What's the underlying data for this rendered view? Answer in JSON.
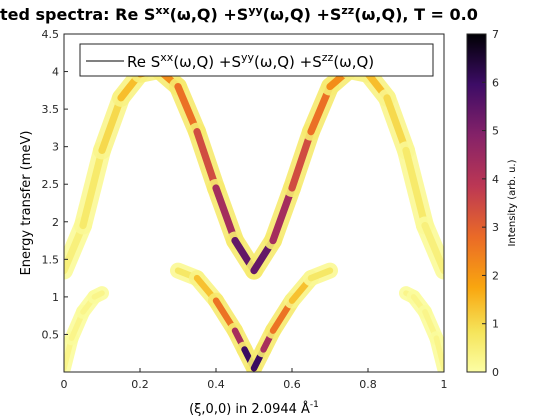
{
  "chart_data": {
    "type": "heatmap",
    "title": "ted spectra: Re S^{xx}(ω,Q) +S^{yy}(ω,Q) +S^{zz}(ω,Q), T =   0.0",
    "title_parts": {
      "prefix": "ted spectra: Re S",
      "sup1": "xx",
      "mid1": "(ω,Q) +S",
      "sup2": "yy",
      "mid2": "(ω,Q) +S",
      "sup3": "zz",
      "suffix": "(ω,Q), T =   0.0"
    },
    "xlabel": "(ξ,0,0) in 2.0944 Å",
    "xlabel_sup": "-1",
    "ylabel": "Energy transfer (meV)",
    "xlim": [
      0,
      1
    ],
    "ylim": [
      0,
      4.5
    ],
    "xticks": [
      "0",
      "0.2",
      "0.4",
      "0.6",
      "0.8",
      "1"
    ],
    "yticks": [
      "0.5",
      "1",
      "1.5",
      "2",
      "2.5",
      "3",
      "3.5",
      "4",
      "4.5"
    ],
    "legend": {
      "position": "top",
      "text_parts": {
        "prefix": "Re S",
        "sup1": "xx",
        "mid1": "(ω,Q) +S",
        "sup2": "yy",
        "mid2": "(ω,Q) +S",
        "sup3": "zz",
        "suffix": "(ω,Q)"
      }
    },
    "colorbar": {
      "label": "Intensity (arb. u.)",
      "range": [
        0,
        7
      ],
      "ticks": [
        "0",
        "1",
        "2",
        "3",
        "4",
        "5",
        "6",
        "7"
      ],
      "colormap": "inferno-reversed"
    },
    "series": [
      {
        "branch": "upper",
        "x": [
          0.0,
          0.05,
          0.1,
          0.15,
          0.2,
          0.25,
          0.3,
          0.35,
          0.4,
          0.45,
          0.5,
          0.55,
          0.6,
          0.65,
          0.7,
          0.75,
          0.8,
          0.85,
          0.9,
          0.95,
          1.0
        ],
        "energy": [
          1.35,
          1.95,
          2.95,
          3.65,
          3.97,
          4.02,
          3.8,
          3.2,
          2.45,
          1.75,
          1.35,
          1.75,
          2.45,
          3.2,
          3.8,
          4.02,
          3.97,
          3.65,
          2.95,
          1.95,
          1.35
        ],
        "intensity": [
          0.4,
          0.5,
          0.8,
          1.2,
          1.6,
          2.0,
          2.4,
          3.0,
          3.8,
          4.8,
          6.0,
          4.8,
          3.8,
          3.0,
          2.4,
          2.0,
          1.6,
          1.2,
          0.8,
          0.5,
          0.4
        ]
      },
      {
        "branch": "lower-acoustic",
        "x": [
          0.3,
          0.35,
          0.4,
          0.45,
          0.475,
          0.5,
          0.525,
          0.55,
          0.6,
          0.65,
          0.7
        ],
        "energy": [
          1.35,
          1.25,
          0.95,
          0.55,
          0.3,
          0.05,
          0.3,
          0.55,
          0.95,
          1.25,
          1.35
        ],
        "intensity": [
          0.5,
          0.9,
          1.8,
          3.5,
          5.0,
          7.0,
          5.0,
          3.5,
          1.8,
          0.9,
          0.5
        ]
      },
      {
        "branch": "lower-edge",
        "x": [
          0.0,
          0.02,
          0.05,
          0.08,
          0.1
        ],
        "energy": [
          0.05,
          0.45,
          0.8,
          1.0,
          1.05
        ],
        "intensity": [
          0.3,
          0.3,
          0.3,
          0.3,
          0.3
        ]
      },
      {
        "branch": "lower-edge",
        "x": [
          0.9,
          0.92,
          0.95,
          0.98,
          1.0
        ],
        "energy": [
          1.05,
          1.0,
          0.8,
          0.45,
          0.05
        ],
        "intensity": [
          0.3,
          0.3,
          0.3,
          0.3,
          0.3
        ]
      }
    ]
  }
}
